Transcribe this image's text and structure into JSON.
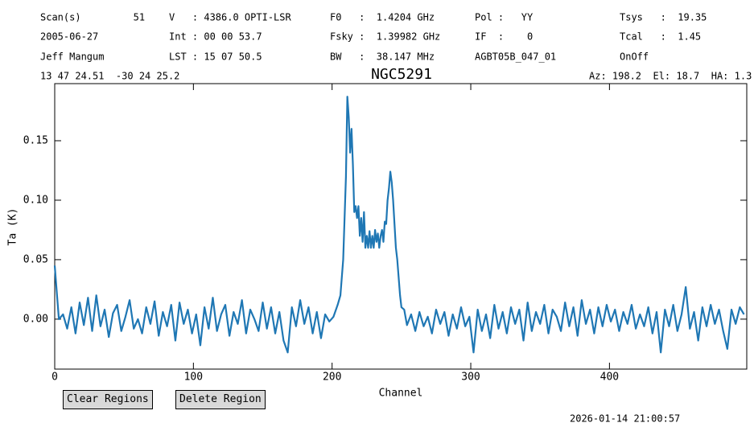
{
  "header": {
    "rows": [
      [
        "Scan(s)         51",
        "V   : 4386.0 OPTI-LSR",
        "F0   :  1.4204 GHz",
        "Pol :   YY",
        "Tsys   :  19.35"
      ],
      [
        "2005-06-27",
        "Int : 00 00 53.7",
        "Fsky :  1.39982 GHz",
        "IF  :    0",
        "Tcal   :  1.45"
      ],
      [
        "Jeff Mangum",
        "LST : 15 07 50.5",
        "BW   :  38.147 MHz",
        "AGBT05B_047_01",
        "OnOff"
      ]
    ],
    "coords": "13 47 24.51  -30 24 25.2",
    "azel": "Az: 198.2  El: 18.7  HA: 1.3"
  },
  "chart_data": {
    "type": "line",
    "title": "NGC5291",
    "xlabel": "Channel",
    "ylabel": "Ta (K)",
    "x": [
      0,
      3,
      6,
      9,
      12,
      15,
      18,
      21,
      24,
      27,
      30,
      33,
      36,
      39,
      42,
      45,
      48,
      51,
      54,
      57,
      60,
      63,
      66,
      69,
      72,
      75,
      78,
      81,
      84,
      87,
      90,
      93,
      96,
      99,
      102,
      105,
      108,
      111,
      114,
      117,
      120,
      123,
      126,
      129,
      132,
      135,
      138,
      141,
      144,
      147,
      150,
      153,
      156,
      159,
      162,
      165,
      168,
      171,
      174,
      177,
      180,
      183,
      186,
      189,
      192,
      195,
      198,
      201,
      204,
      206,
      208,
      210,
      211,
      212,
      213,
      214,
      215,
      216,
      217,
      218,
      219,
      220,
      221,
      222,
      223,
      224,
      225,
      226,
      227,
      228,
      229,
      230,
      231,
      232,
      233,
      234,
      235,
      236,
      237,
      238,
      239,
      240,
      241,
      242,
      243,
      244,
      245,
      246,
      247,
      248,
      249,
      250,
      252,
      254,
      257,
      260,
      263,
      266,
      269,
      272,
      275,
      278,
      281,
      284,
      287,
      290,
      293,
      296,
      299,
      302,
      305,
      308,
      311,
      314,
      317,
      320,
      323,
      326,
      329,
      332,
      335,
      338,
      341,
      344,
      347,
      350,
      353,
      356,
      359,
      362,
      365,
      368,
      371,
      374,
      377,
      380,
      383,
      386,
      389,
      392,
      395,
      398,
      401,
      404,
      407,
      410,
      413,
      416,
      419,
      422,
      425,
      428,
      431,
      434,
      437,
      440,
      443,
      446,
      449,
      452,
      455,
      458,
      461,
      464,
      467,
      470,
      473,
      476,
      479,
      482,
      485,
      488,
      491,
      494,
      497
    ],
    "series": [
      {
        "name": "NGC5291",
        "color": "#1f77b4",
        "values": [
          0.045,
          0.0,
          0.004,
          -0.008,
          0.01,
          -0.012,
          0.014,
          -0.005,
          0.018,
          -0.01,
          0.02,
          -0.006,
          0.008,
          -0.015,
          0.005,
          0.012,
          -0.01,
          0.002,
          0.016,
          -0.008,
          0.0,
          -0.012,
          0.01,
          -0.004,
          0.015,
          -0.014,
          0.006,
          -0.006,
          0.012,
          -0.018,
          0.014,
          -0.004,
          0.008,
          -0.012,
          0.004,
          -0.022,
          0.01,
          -0.008,
          0.018,
          -0.01,
          0.004,
          0.012,
          -0.014,
          0.006,
          -0.004,
          0.016,
          -0.012,
          0.008,
          0.0,
          -0.01,
          0.014,
          -0.008,
          0.01,
          -0.012,
          0.006,
          -0.018,
          -0.028,
          0.01,
          -0.006,
          0.016,
          -0.004,
          0.01,
          -0.012,
          0.006,
          -0.016,
          0.004,
          -0.002,
          0.002,
          0.012,
          0.02,
          0.05,
          0.12,
          0.187,
          0.17,
          0.14,
          0.16,
          0.13,
          0.09,
          0.095,
          0.085,
          0.095,
          0.07,
          0.085,
          0.065,
          0.09,
          0.06,
          0.07,
          0.06,
          0.074,
          0.06,
          0.07,
          0.06,
          0.075,
          0.065,
          0.072,
          0.06,
          0.07,
          0.075,
          0.065,
          0.082,
          0.08,
          0.1,
          0.11,
          0.124,
          0.115,
          0.1,
          0.08,
          0.06,
          0.05,
          0.035,
          0.02,
          0.01,
          0.008,
          -0.005,
          0.004,
          -0.01,
          0.006,
          -0.006,
          0.002,
          -0.012,
          0.008,
          -0.004,
          0.006,
          -0.014,
          0.004,
          -0.008,
          0.01,
          -0.006,
          0.002,
          -0.028,
          0.008,
          -0.01,
          0.004,
          -0.016,
          0.012,
          -0.008,
          0.006,
          -0.012,
          0.01,
          -0.004,
          0.008,
          -0.018,
          0.014,
          -0.01,
          0.006,
          -0.004,
          0.012,
          -0.012,
          0.008,
          0.002,
          -0.01,
          0.014,
          -0.006,
          0.01,
          -0.014,
          0.016,
          -0.004,
          0.008,
          -0.012,
          0.01,
          -0.006,
          0.012,
          -0.002,
          0.008,
          -0.01,
          0.006,
          -0.004,
          0.012,
          -0.008,
          0.004,
          -0.006,
          0.01,
          -0.012,
          0.006,
          -0.028,
          0.008,
          -0.006,
          0.012,
          -0.01,
          0.004,
          0.027,
          -0.008,
          0.006,
          -0.018,
          0.01,
          -0.006,
          0.012,
          -0.004,
          0.008,
          -0.01,
          -0.025,
          0.008,
          -0.004,
          0.01,
          0.004
        ]
      }
    ],
    "xlim": [
      0,
      499
    ],
    "ylim": [
      -0.042,
      0.198
    ],
    "xticks": [
      0,
      100,
      200,
      300,
      400
    ],
    "yticks": [
      {
        "value": 0,
        "label": "0.00"
      },
      {
        "value": 0.05,
        "label": "0.05"
      },
      {
        "value": 0.1,
        "label": "0.10"
      },
      {
        "value": 0.15,
        "label": "0.15"
      }
    ]
  },
  "buttons": [
    "Clear Regions",
    "Delete Region"
  ],
  "timestamp": "2026-01-14 21:00:57"
}
